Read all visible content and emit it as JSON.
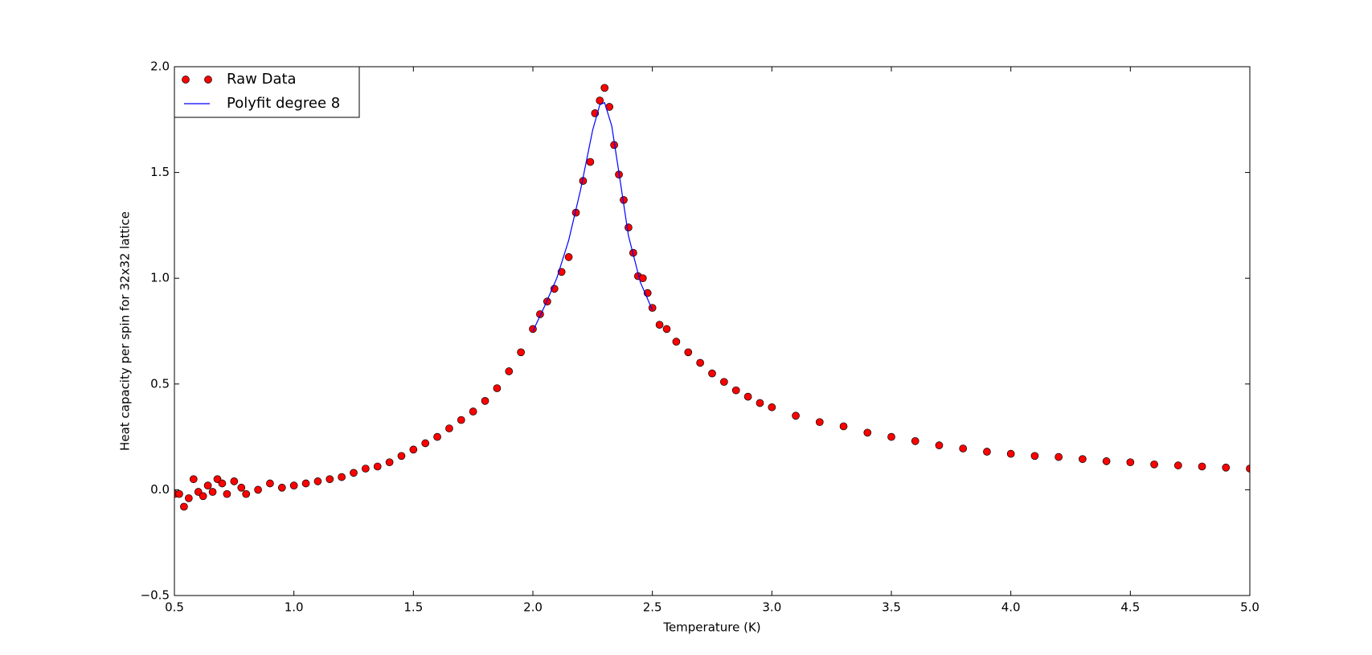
{
  "chart_data": {
    "type": "scatter",
    "xlabel": "Temperature (K)",
    "ylabel": "Heat capacity per spin for 32x32 lattice",
    "xlim": [
      0.5,
      5.0
    ],
    "ylim": [
      -0.5,
      2.0
    ],
    "xticks": [
      0.5,
      {
        "value": 1.0,
        "label": "1.0"
      },
      1.5,
      {
        "value": 2.0,
        "label": "2.0"
      },
      2.5,
      {
        "value": 3.0,
        "label": "3.0"
      },
      3.5,
      {
        "value": 4.0,
        "label": "4.0"
      },
      4.5,
      {
        "value": 5.0,
        "label": "5.0"
      }
    ],
    "yticks": [
      {
        "value": -0.5,
        "label": "−0.5"
      },
      {
        "value": 0.0,
        "label": "0.0"
      },
      0.5,
      {
        "value": 1.0,
        "label": "1.0"
      },
      1.5,
      {
        "value": 2.0,
        "label": "2.0"
      }
    ],
    "legend": "upper left",
    "series": [
      {
        "name": "Raw Data",
        "type": "scatter",
        "color": "#ff0000",
        "x": [
          0.5,
          0.52,
          0.54,
          0.56,
          0.58,
          0.6,
          0.62,
          0.64,
          0.66,
          0.68,
          0.7,
          0.72,
          0.75,
          0.78,
          0.8,
          0.85,
          0.9,
          0.95,
          1.0,
          1.05,
          1.1,
          1.15,
          1.2,
          1.25,
          1.3,
          1.35,
          1.4,
          1.45,
          1.5,
          1.55,
          1.6,
          1.65,
          1.7,
          1.75,
          1.8,
          1.85,
          1.9,
          1.95,
          2.0,
          2.03,
          2.06,
          2.09,
          2.12,
          2.15,
          2.18,
          2.21,
          2.24,
          2.26,
          2.28,
          2.3,
          2.32,
          2.34,
          2.36,
          2.38,
          2.4,
          2.42,
          2.44,
          2.46,
          2.48,
          2.5,
          2.53,
          2.56,
          2.6,
          2.65,
          2.7,
          2.75,
          2.8,
          2.85,
          2.9,
          2.95,
          3.0,
          3.1,
          3.2,
          3.3,
          3.4,
          3.5,
          3.6,
          3.7,
          3.8,
          3.9,
          4.0,
          4.1,
          4.2,
          4.3,
          4.4,
          4.5,
          4.6,
          4.7,
          4.8,
          4.9,
          5.0
        ],
        "values": [
          -0.02,
          -0.02,
          -0.08,
          -0.04,
          0.05,
          -0.01,
          -0.03,
          0.02,
          -0.01,
          0.05,
          0.03,
          -0.02,
          0.04,
          0.01,
          -0.02,
          0.0,
          0.03,
          0.01,
          0.02,
          0.03,
          0.04,
          0.05,
          0.06,
          0.08,
          0.1,
          0.11,
          0.13,
          0.16,
          0.19,
          0.22,
          0.25,
          0.29,
          0.33,
          0.37,
          0.42,
          0.48,
          0.56,
          0.65,
          0.76,
          0.83,
          0.89,
          0.95,
          1.03,
          1.1,
          1.31,
          1.46,
          1.55,
          1.78,
          1.84,
          1.9,
          1.81,
          1.63,
          1.49,
          1.37,
          1.24,
          1.12,
          1.01,
          1.0,
          0.93,
          0.86,
          0.78,
          0.76,
          0.7,
          0.65,
          0.6,
          0.55,
          0.51,
          0.47,
          0.44,
          0.41,
          0.39,
          0.35,
          0.32,
          0.3,
          0.27,
          0.25,
          0.23,
          0.21,
          0.195,
          0.18,
          0.17,
          0.16,
          0.155,
          0.145,
          0.135,
          0.13,
          0.12,
          0.115,
          0.11,
          0.105,
          0.1
        ]
      },
      {
        "name": "Polyfit degree 8",
        "type": "line",
        "color": "#0000ff",
        "x": [
          2.0,
          2.05,
          2.1,
          2.15,
          2.2,
          2.25,
          2.28,
          2.3,
          2.33,
          2.36,
          2.4,
          2.45,
          2.5
        ],
        "values": [
          0.75,
          0.87,
          1.0,
          1.18,
          1.42,
          1.7,
          1.82,
          1.83,
          1.72,
          1.5,
          1.2,
          0.98,
          0.85
        ]
      }
    ]
  }
}
